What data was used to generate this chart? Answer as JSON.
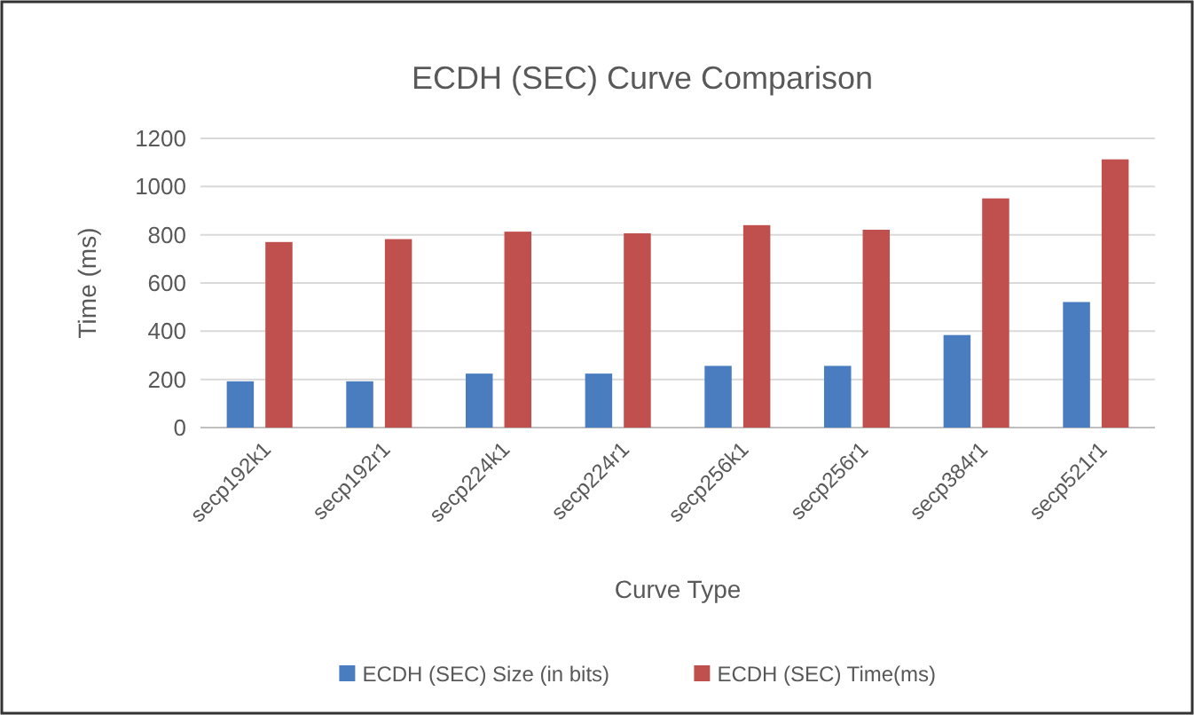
{
  "chart_data": {
    "type": "bar",
    "title": "ECDH (SEC) Curve Comparison",
    "xlabel": "Curve Type",
    "ylabel": "Time (ms)",
    "categories": [
      "secp192k1",
      "secp192r1",
      "secp224k1",
      "secp224r1",
      "secp256k1",
      "secp256r1",
      "secp384r1",
      "secp521r1"
    ],
    "series": [
      {
        "name": "ECDH (SEC) Size (in bits)",
        "color": "#4a7dbf",
        "values": [
          192,
          192,
          224,
          224,
          256,
          256,
          384,
          521
        ]
      },
      {
        "name": "ECDH (SEC) Time(ms)",
        "color": "#c0504d",
        "values": [
          770,
          782,
          813,
          806,
          840,
          821,
          951,
          1113
        ]
      }
    ],
    "ylim": [
      0,
      1200
    ],
    "yticks": [
      0,
      200,
      400,
      600,
      800,
      1000,
      1200
    ],
    "grid": "y",
    "legend": "bottom"
  }
}
